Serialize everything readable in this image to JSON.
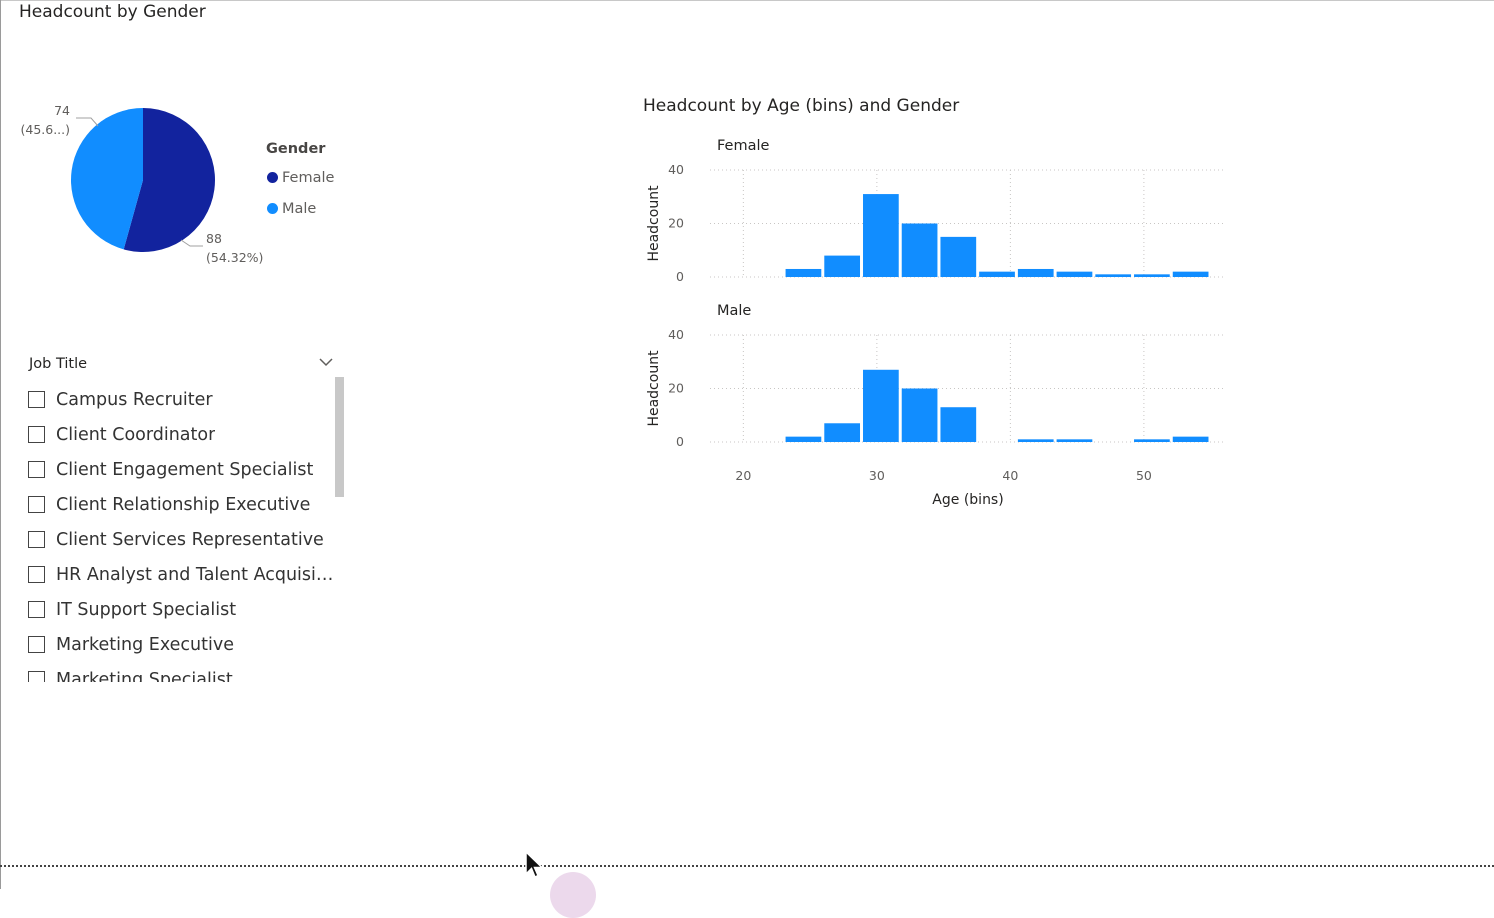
{
  "page": {
    "title": "Headcount by Gender"
  },
  "pie": {
    "legend_title": "Gender",
    "labels": {
      "female_value": "88",
      "female_pct": "(54.32%)",
      "male_value": "74",
      "male_pct": "(45.6...)"
    }
  },
  "slicer": {
    "title": "Job Title",
    "items": [
      "Campus Recruiter",
      "Client Coordinator",
      "Client Engagement Specialist",
      "Client Relationship Executive",
      "Client Services Representative",
      "HR Analyst and Talent Acquisiti...",
      "IT Support Specialist",
      "Marketing Executive",
      "Marketing Specialist"
    ]
  },
  "bar": {
    "title": "Headcount by Age (bins) and Gender"
  },
  "colors": {
    "female": "#12239e",
    "male": "#118dff",
    "bar": "#118dff",
    "grid": "#c8c6c4",
    "text": "#605e5c"
  },
  "icons": {
    "slicer_chevron": "chevron-down-icon",
    "legend_marker": "circle-icon",
    "mouse_pointer": "cursor-arrow-icon"
  },
  "chart_data": [
    {
      "type": "pie",
      "legend_title": "Gender",
      "legend": "right",
      "slices": [
        {
          "label": "Female",
          "value": 88,
          "percent": 54.32
        },
        {
          "label": "Male",
          "value": 74,
          "percent": 45.68
        }
      ]
    },
    {
      "type": "bar",
      "title": "Headcount by Age (bins) and Gender",
      "xlabel": "Age (bins)",
      "ylabel": "Headcount",
      "xlim": [
        19,
        56
      ],
      "ylim": [
        0,
        40
      ],
      "xticks": [
        20,
        30,
        40,
        50
      ],
      "yticks": [
        0,
        20,
        40
      ],
      "bin_width": 2.9,
      "grid": true,
      "x": [
        24.5,
        27.4,
        30.3,
        33.2,
        36.1,
        39.0,
        41.9,
        44.8,
        47.7,
        50.6,
        53.5
      ],
      "series": [
        {
          "name": "Female",
          "values": [
            3,
            8,
            31,
            20,
            15,
            2,
            3,
            2,
            1,
            1,
            2
          ]
        },
        {
          "name": "Male",
          "values": [
            2,
            7,
            27,
            20,
            13,
            0,
            1,
            1,
            0,
            1,
            2
          ]
        }
      ]
    }
  ]
}
